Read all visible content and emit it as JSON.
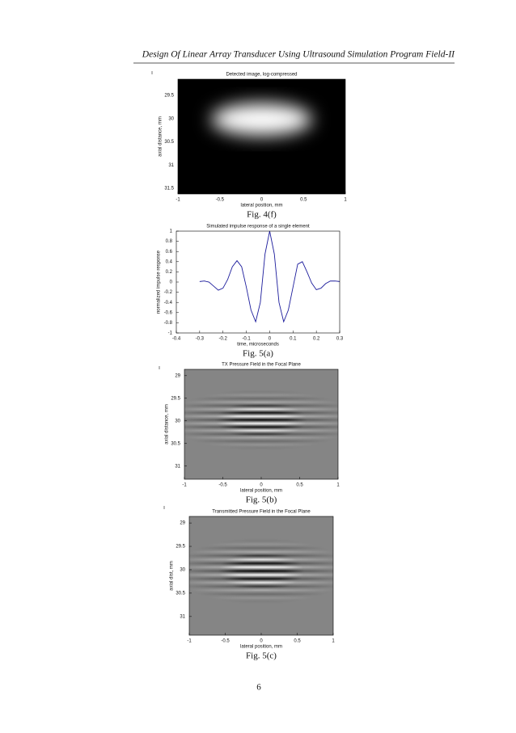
{
  "header": {
    "title": "Design Of Linear Array Transducer Using Ultrasound Simulation Program Field-II"
  },
  "chart_data": [
    {
      "type": "image",
      "image": "detected",
      "caption": "Fig. 4(f)",
      "title": "Detected image, log-compressed",
      "xlabel": "lateral position, mm",
      "ylabel": "axial distance, mm",
      "xlim": [
        -1,
        1
      ],
      "xticks": [
        -1,
        -0.5,
        0,
        0.5,
        1
      ],
      "ylim": [
        29.15,
        31.62
      ],
      "yticks": [
        29.5,
        30,
        30.5,
        31,
        31.5
      ],
      "y_reversed": true
    },
    {
      "type": "line",
      "caption": "Fig. 5(a)",
      "title": "Simulated impulse response of a single element",
      "xlabel": "time, microseconds",
      "ylabel": "normalized impulse response",
      "color": "#1c1c9c",
      "x": [
        -0.3,
        -0.28,
        -0.26,
        -0.24,
        -0.22,
        -0.2,
        -0.18,
        -0.16,
        -0.14,
        -0.12,
        -0.1,
        -0.08,
        -0.06,
        -0.04,
        -0.02,
        0,
        0.02,
        0.04,
        0.06,
        0.08,
        0.1,
        0.12,
        0.14,
        0.16,
        0.18,
        0.2,
        0.22,
        0.24,
        0.26,
        0.28,
        0.3
      ],
      "values": [
        0.01,
        0.02,
        0.0,
        -0.08,
        -0.16,
        -0.12,
        0.05,
        0.3,
        0.42,
        0.3,
        -0.1,
        -0.55,
        -0.78,
        -0.4,
        0.55,
        1,
        0.55,
        -0.4,
        -0.78,
        -0.55,
        -0.1,
        0.35,
        0.4,
        0.2,
        -0.02,
        -0.15,
        -0.12,
        -0.03,
        0.02,
        0.02,
        0.01
      ],
      "xlim": [
        -0.4,
        0.3
      ],
      "xticks": [
        -0.4,
        -0.3,
        -0.2,
        -0.1,
        0,
        0.1,
        0.2,
        0.3
      ],
      "ylim": [
        -1,
        1
      ],
      "yticks": [
        -1,
        -0.8,
        -0.6,
        -0.4,
        -0.2,
        0,
        0.2,
        0.4,
        0.6,
        0.8,
        1
      ]
    },
    {
      "type": "image",
      "image": "field",
      "caption": "Fig. 5(b)",
      "title": "TX Pressure Field in the Focal Plane",
      "xlabel": "lateral position, mm",
      "ylabel": "axial distance, mm",
      "xlim": [
        -1,
        1
      ],
      "xticks": [
        -1,
        -0.5,
        0,
        0.5,
        1
      ],
      "ylim": [
        28.86,
        31.29
      ],
      "yticks": [
        29,
        29.5,
        30,
        30.5,
        31
      ],
      "y_reversed": true
    },
    {
      "type": "image",
      "image": "field",
      "caption": "Fig. 5(c)",
      "title": "Transmitted Pressure Field in the Focal Plane",
      "xlabel": "lateral position, mm",
      "ylabel": "axial dist, mm",
      "xlim": [
        -1,
        1
      ],
      "xticks": [
        -1,
        -0.5,
        0,
        0.5,
        1
      ],
      "ylim": [
        28.86,
        31.4
      ],
      "yticks": [
        29,
        29.5,
        30,
        30.5,
        31
      ],
      "y_reversed": true
    }
  ],
  "page_number": "6"
}
